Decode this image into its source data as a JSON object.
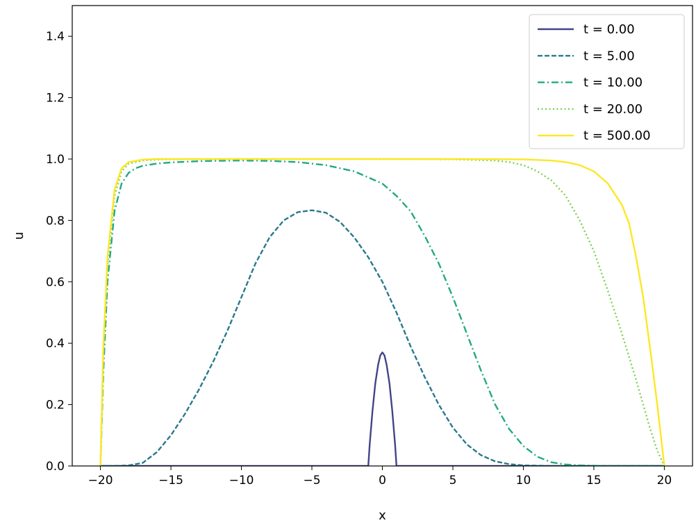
{
  "chart_data": {
    "type": "line",
    "title": "",
    "xlabel": "x",
    "ylabel": "u",
    "xlim": [
      -22,
      22
    ],
    "ylim": [
      0,
      1.5
    ],
    "xticks": [
      -20,
      -15,
      -10,
      -5,
      0,
      5,
      10,
      15,
      20
    ],
    "xtick_labels": [
      "−20",
      "−15",
      "−10",
      "−5",
      "0",
      "5",
      "10",
      "15",
      "20"
    ],
    "yticks": [
      0.0,
      0.2,
      0.4,
      0.6,
      0.8,
      1.0,
      1.2,
      1.4
    ],
    "ytick_labels": [
      "0.0",
      "0.2",
      "0.4",
      "0.6",
      "0.8",
      "1.0",
      "1.2",
      "1.4"
    ],
    "grid": false,
    "legend_position": "top-right",
    "series": [
      {
        "name": "t = 0.00",
        "color": "#414487",
        "dash": "solid",
        "x": [
          -20,
          -1.0,
          -0.9,
          -0.7,
          -0.5,
          -0.3,
          -0.15,
          0,
          0.15,
          0.3,
          0.5,
          0.7,
          0.9,
          1.0,
          20
        ],
        "y": [
          0,
          0,
          0.07,
          0.18,
          0.27,
          0.33,
          0.36,
          0.37,
          0.36,
          0.33,
          0.27,
          0.18,
          0.07,
          0,
          0
        ]
      },
      {
        "name": "t = 5.00",
        "color": "#2a788e",
        "dash": "dashed",
        "x": [
          -20,
          -19,
          -18,
          -17,
          -16,
          -15,
          -14,
          -13,
          -12,
          -11,
          -10,
          -9,
          -8,
          -7,
          -6,
          -5,
          -4,
          -3,
          -2,
          -1,
          0,
          1,
          2,
          3,
          4,
          5,
          6,
          7,
          8,
          9,
          10,
          11,
          12,
          13,
          14,
          15,
          16,
          17,
          18,
          19,
          20
        ],
        "y": [
          0,
          0,
          0.002,
          0.01,
          0.045,
          0.1,
          0.17,
          0.25,
          0.34,
          0.44,
          0.55,
          0.66,
          0.745,
          0.8,
          0.827,
          0.833,
          0.825,
          0.795,
          0.745,
          0.68,
          0.6,
          0.5,
          0.39,
          0.29,
          0.2,
          0.125,
          0.07,
          0.035,
          0.015,
          0.006,
          0.002,
          0.001,
          0,
          0,
          0,
          0,
          0,
          0,
          0,
          0,
          0
        ]
      },
      {
        "name": "t = 10.00",
        "color": "#22a884",
        "dash": "dashdot",
        "x": [
          -20,
          -19.8,
          -19.5,
          -19,
          -18.5,
          -18,
          -17.5,
          -17,
          -16,
          -15,
          -14,
          -13,
          -12,
          -10,
          -8,
          -6,
          -4,
          -2,
          0,
          1,
          2,
          3,
          4,
          5,
          6,
          7,
          8,
          9,
          10,
          11,
          12,
          13,
          14,
          15,
          16,
          18,
          20
        ],
        "y": [
          0,
          0.3,
          0.6,
          0.83,
          0.92,
          0.955,
          0.97,
          0.978,
          0.985,
          0.989,
          0.991,
          0.993,
          0.994,
          0.995,
          0.994,
          0.99,
          0.98,
          0.96,
          0.92,
          0.88,
          0.83,
          0.75,
          0.66,
          0.55,
          0.43,
          0.31,
          0.2,
          0.12,
          0.065,
          0.03,
          0.012,
          0.005,
          0.002,
          0.001,
          0,
          0,
          0
        ]
      },
      {
        "name": "t = 20.00",
        "color": "#7ad151",
        "dash": "dotted",
        "x": [
          -20,
          -19.8,
          -19.5,
          -19,
          -18.5,
          -18,
          -17,
          -16,
          -15,
          -10,
          -5,
          0,
          5,
          8,
          9,
          10,
          11,
          12,
          13,
          14,
          15,
          16,
          17,
          18,
          18.5,
          19,
          19.5,
          20
        ],
        "y": [
          0,
          0.35,
          0.65,
          0.88,
          0.96,
          0.985,
          0.995,
          0.998,
          0.999,
          1.0,
          1.0,
          1.0,
          0.999,
          0.995,
          0.99,
          0.98,
          0.96,
          0.93,
          0.88,
          0.8,
          0.7,
          0.57,
          0.43,
          0.28,
          0.2,
          0.12,
          0.05,
          0
        ]
      },
      {
        "name": "t = 500.00",
        "color": "#fde725",
        "dash": "solid",
        "x": [
          -20,
          -19.8,
          -19.5,
          -19,
          -18.5,
          -18,
          -17,
          -16,
          -15,
          -10,
          -5,
          0,
          5,
          10,
          12,
          13,
          14,
          15,
          16,
          17,
          17.5,
          18,
          18.5,
          19,
          19.5,
          20
        ],
        "y": [
          0,
          0.38,
          0.68,
          0.9,
          0.97,
          0.99,
          0.998,
          1.0,
          1.0,
          1.0,
          1.0,
          1.0,
          1.0,
          0.999,
          0.995,
          0.99,
          0.98,
          0.96,
          0.92,
          0.85,
          0.79,
          0.68,
          0.55,
          0.38,
          0.2,
          0
        ]
      }
    ]
  }
}
